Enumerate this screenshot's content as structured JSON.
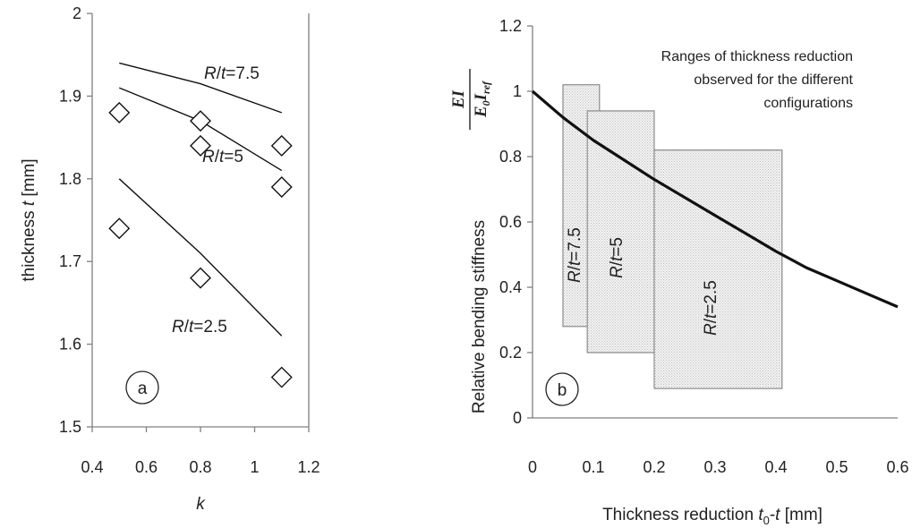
{
  "chart_data": [
    {
      "type": "scatter",
      "panel": "a",
      "xlabel": "k",
      "ylabel": {
        "prefix": "thickness ",
        "var": "t",
        "unit": " [mm]"
      },
      "xlim": [
        0.4,
        1.2
      ],
      "ylim": [
        1.5,
        2.0
      ],
      "xticks": [
        "0.4",
        "0.6",
        "0.8",
        "1",
        "1.2"
      ],
      "yticks": [
        "1.5",
        "1.6",
        "1.7",
        "1.8",
        "1.9",
        "2"
      ],
      "grid": false,
      "markers": [
        {
          "x": 0.5,
          "y": 1.88
        },
        {
          "x": 0.5,
          "y": 1.74
        },
        {
          "x": 0.8,
          "y": 1.87
        },
        {
          "x": 0.8,
          "y": 1.84
        },
        {
          "x": 0.8,
          "y": 1.68
        },
        {
          "x": 1.1,
          "y": 1.84
        },
        {
          "x": 1.1,
          "y": 1.79
        },
        {
          "x": 1.1,
          "y": 1.56
        }
      ],
      "lines": [
        {
          "label": {
            "a": "R",
            "b": "/",
            "c": "t",
            "d": "=7.5"
          },
          "x": [
            0.5,
            0.8,
            1.1
          ],
          "y": [
            1.94,
            1.915,
            1.88
          ]
        },
        {
          "label": {
            "a": "R",
            "b": "/",
            "c": "t",
            "d": "=5"
          },
          "x": [
            0.5,
            0.8,
            1.1
          ],
          "y": [
            1.91,
            1.87,
            1.81
          ]
        },
        {
          "label": {
            "a": "R",
            "b": "/",
            "c": "t",
            "d": "=2.5"
          },
          "x": [
            0.5,
            0.8,
            1.1
          ],
          "y": [
            1.8,
            1.71,
            1.61
          ]
        }
      ],
      "badge": "a"
    },
    {
      "type": "line",
      "panel": "b",
      "xlabel": {
        "prefix": "Thickness reduction ",
        "v1": "t",
        "sub": "0",
        "mid": "-",
        "v2": "t",
        "unit": " [mm]"
      },
      "ylabel": "Relative bending stiffness",
      "ylabel_fraction": {
        "num": "EI",
        "den_a": "E",
        "den_a_sub": "0",
        "den_b": "I",
        "den_b_sub": "ref"
      },
      "xlim": [
        0,
        0.6
      ],
      "ylim": [
        0,
        1.2
      ],
      "xticks": [
        "0",
        "0.1",
        "0.2",
        "0.3",
        "0.4",
        "0.5",
        "0.6"
      ],
      "yticks": [
        "0",
        "0.2",
        "0.4",
        "0.6",
        "0.8",
        "1",
        "1.2"
      ],
      "grid": false,
      "curve": {
        "x": [
          0,
          0.05,
          0.1,
          0.15,
          0.2,
          0.25,
          0.3,
          0.35,
          0.4,
          0.45,
          0.5,
          0.55,
          0.6
        ],
        "y": [
          1.0,
          0.92,
          0.85,
          0.79,
          0.73,
          0.675,
          0.62,
          0.565,
          0.51,
          0.46,
          0.42,
          0.38,
          0.34
        ]
      },
      "ranges": [
        {
          "label": {
            "a": "R",
            "b": "/",
            "c": "t",
            "d": "=7.5"
          },
          "x": [
            0.05,
            0.11
          ],
          "y": [
            0.28,
            1.02
          ]
        },
        {
          "label": {
            "a": "R",
            "b": "/",
            "c": "t",
            "d": "=5"
          },
          "x": [
            0.09,
            0.2
          ],
          "y": [
            0.2,
            0.94
          ]
        },
        {
          "label": {
            "a": "R",
            "b": "/",
            "c": "t",
            "d": "=2.5"
          },
          "x": [
            0.2,
            0.41
          ],
          "y": [
            0.09,
            0.82
          ]
        }
      ],
      "note": [
        "Ranges of thickness reduction",
        "observed for the different",
        "configurations"
      ],
      "badge": "b"
    }
  ]
}
